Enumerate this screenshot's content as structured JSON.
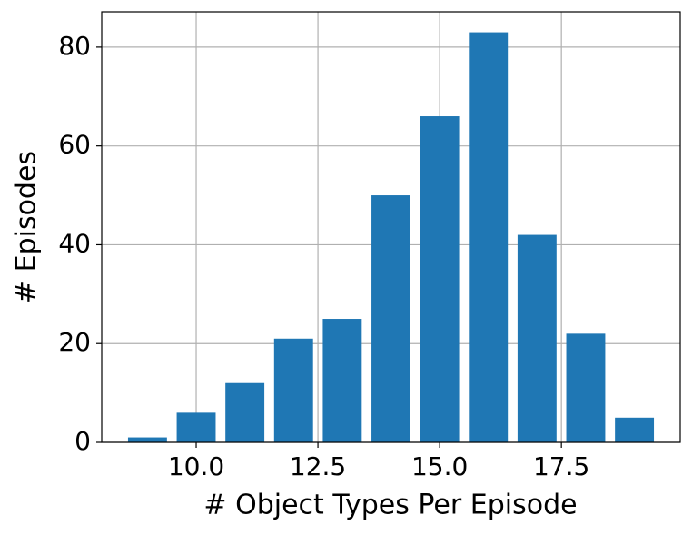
{
  "chart_data": {
    "type": "bar",
    "xlabel": "# Object Types Per Episode",
    "ylabel": "# Episodes",
    "x": [
      9,
      10,
      11,
      12,
      13,
      14,
      15,
      16,
      17,
      18,
      19
    ],
    "values": [
      1,
      6,
      12,
      21,
      25,
      50,
      66,
      83,
      42,
      22,
      5
    ],
    "color": "#1f77b4",
    "xlim": [
      8.06,
      19.94
    ],
    "xticks": [
      {
        "value": 10,
        "label": "10.0"
      },
      12.5,
      {
        "value": 15,
        "label": "15.0"
      },
      17.5
    ],
    "ylim": [
      0,
      87.15
    ],
    "yticks": [
      0,
      20,
      40,
      60,
      80
    ],
    "grid": true
  }
}
